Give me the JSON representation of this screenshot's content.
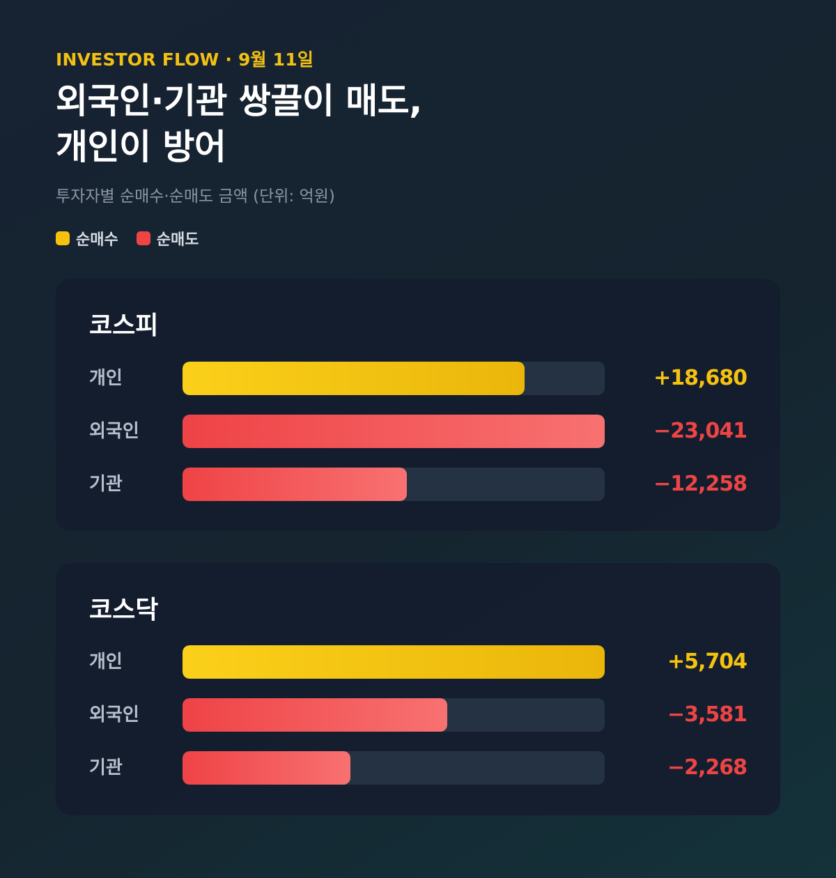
{
  "header": {
    "kicker": "INVESTOR FLOW · 9월 11일",
    "title_line1": "외국인·기관 쌍끌이 매도,",
    "title_line2": "개인이 방어",
    "subtitle": "투자자별 순매수·순매도 금액 (단위: 억원)"
  },
  "legend": {
    "buy_label": "순매수",
    "sell_label": "순매도",
    "buy_color": "#f5c20f",
    "sell_color": "#ef4444"
  },
  "chart_data": [
    {
      "type": "bar",
      "orientation": "horizontal",
      "title": "코스피",
      "unit": "억원",
      "categories": [
        "개인",
        "외국인",
        "기관"
      ],
      "values": [
        18680,
        -23041,
        -12258
      ],
      "labels": [
        "+18,680",
        "−23,041",
        "−12,258"
      ],
      "scale_max": 23041
    },
    {
      "type": "bar",
      "orientation": "horizontal",
      "title": "코스닥",
      "unit": "억원",
      "categories": [
        "개인",
        "외국인",
        "기관"
      ],
      "values": [
        5704,
        -3581,
        -2268
      ],
      "labels": [
        "+5,704",
        "−3,581",
        "−2,268"
      ],
      "scale_max": 5704
    }
  ]
}
